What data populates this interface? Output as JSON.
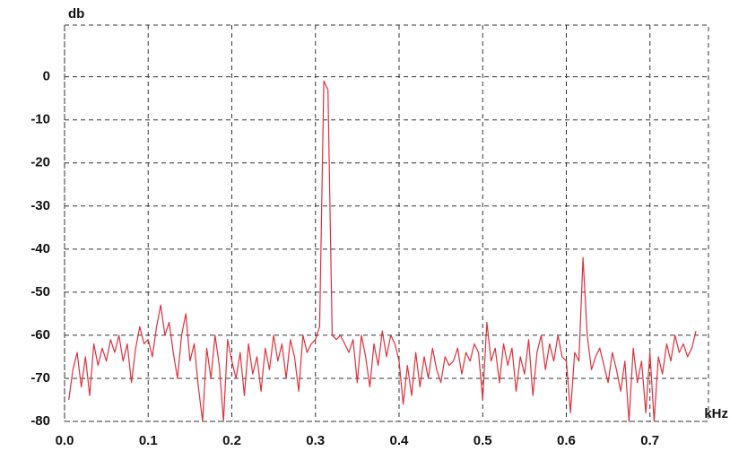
{
  "chart_data": {
    "type": "line",
    "y_label": "db",
    "x_label": "kHz",
    "xlim": [
      0,
      0.77
    ],
    "ylim": [
      -80,
      12
    ],
    "xticks": [
      {
        "value": 0,
        "label": "0.0"
      },
      0.1,
      0.2,
      0.3,
      0.4,
      0.5,
      0.6,
      0.7
    ],
    "yticks": [
      0,
      -10,
      -20,
      -30,
      -40,
      -50,
      -60,
      -70,
      -80
    ],
    "grid": true,
    "series": [
      {
        "color": "#e0303c",
        "x": [
          0.005,
          0.01,
          0.015,
          0.02,
          0.025,
          0.03,
          0.035,
          0.04,
          0.045,
          0.05,
          0.055,
          0.06,
          0.065,
          0.07,
          0.075,
          0.08,
          0.085,
          0.09,
          0.095,
          0.1,
          0.105,
          0.11,
          0.115,
          0.12,
          0.125,
          0.13,
          0.135,
          0.14,
          0.145,
          0.15,
          0.155,
          0.16,
          0.165,
          0.17,
          0.175,
          0.18,
          0.185,
          0.19,
          0.195,
          0.2,
          0.205,
          0.21,
          0.215,
          0.22,
          0.225,
          0.23,
          0.235,
          0.24,
          0.245,
          0.25,
          0.255,
          0.26,
          0.265,
          0.27,
          0.275,
          0.28,
          0.285,
          0.29,
          0.295,
          0.3,
          0.305,
          0.31,
          0.315,
          0.32,
          0.325,
          0.33,
          0.335,
          0.34,
          0.345,
          0.35,
          0.355,
          0.36,
          0.365,
          0.37,
          0.375,
          0.38,
          0.385,
          0.39,
          0.395,
          0.4,
          0.405,
          0.41,
          0.415,
          0.42,
          0.425,
          0.43,
          0.435,
          0.44,
          0.445,
          0.45,
          0.455,
          0.46,
          0.465,
          0.47,
          0.475,
          0.48,
          0.485,
          0.49,
          0.495,
          0.5,
          0.505,
          0.51,
          0.515,
          0.52,
          0.525,
          0.53,
          0.535,
          0.54,
          0.545,
          0.55,
          0.555,
          0.56,
          0.565,
          0.57,
          0.575,
          0.58,
          0.585,
          0.59,
          0.595,
          0.6,
          0.605,
          0.61,
          0.615,
          0.62,
          0.625,
          0.63,
          0.635,
          0.64,
          0.645,
          0.65,
          0.655,
          0.66,
          0.665,
          0.67,
          0.675,
          0.68,
          0.685,
          0.69,
          0.695,
          0.7,
          0.705,
          0.71,
          0.715,
          0.72,
          0.725,
          0.73,
          0.735,
          0.74,
          0.745,
          0.75,
          0.755
        ],
        "values": [
          -75,
          -68,
          -64,
          -72,
          -65,
          -74,
          -62,
          -67,
          -63,
          -66,
          -61,
          -64,
          -60,
          -66,
          -62,
          -71,
          -63,
          -58,
          -62,
          -61,
          -65,
          -58,
          -53,
          -60,
          -57,
          -64,
          -70,
          -60,
          -55,
          -66,
          -62,
          -72,
          -80,
          -63,
          -70,
          -60,
          -67,
          -80,
          -61,
          -66,
          -70,
          -64,
          -74,
          -62,
          -69,
          -65,
          -73,
          -63,
          -68,
          -60,
          -66,
          -62,
          -70,
          -61,
          -65,
          -73,
          -60,
          -64,
          -62,
          -61,
          -58,
          -1,
          -3,
          -60,
          -61,
          -60,
          -62,
          -64,
          -61,
          -71,
          -60,
          -65,
          -72,
          -62,
          -67,
          -59,
          -65,
          -60,
          -62,
          -66,
          -76,
          -67,
          -74,
          -64,
          -72,
          -65,
          -70,
          -63,
          -68,
          -71,
          -65,
          -67,
          -66,
          -63,
          -69,
          -64,
          -66,
          -62,
          -64,
          -75,
          -57,
          -66,
          -63,
          -71,
          -62,
          -67,
          -63,
          -73,
          -65,
          -69,
          -61,
          -74,
          -64,
          -60,
          -68,
          -62,
          -66,
          -60,
          -65,
          -66,
          -78,
          -64,
          -66,
          -42,
          -60,
          -68,
          -65,
          -63,
          -67,
          -71,
          -64,
          -68,
          -73,
          -66,
          -80,
          -63,
          -71,
          -66,
          -78,
          -64,
          -80,
          -65,
          -69,
          -62,
          -66,
          -60,
          -64,
          -62,
          -65,
          -63,
          -59
        ]
      }
    ]
  }
}
